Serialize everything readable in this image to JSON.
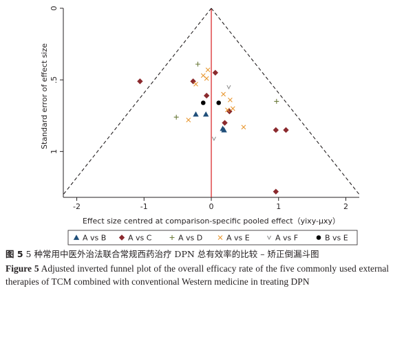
{
  "chart_data": {
    "type": "scatter",
    "xlabel": "Effect size centred at comparison-specific pooled effect（yixy-μxy）",
    "ylabel": "Standard error of effect size",
    "xlim": [
      -2.2,
      2.2
    ],
    "ylim": [
      0,
      1.32
    ],
    "y_reversed": true,
    "x_ticks": [
      "-2",
      "-1",
      "0",
      "1",
      "2"
    ],
    "x_tick_values": [
      -2,
      -1,
      0,
      1,
      2
    ],
    "y_ticks": [
      "0",
      ".5",
      "1"
    ],
    "y_tick_values": [
      0,
      0.5,
      1
    ],
    "reference_line_x": 0,
    "funnel": {
      "apex": [
        0,
        0
      ],
      "base_y": 1.3,
      "half_width_at_base": 2.2
    },
    "legend_position": "bottom",
    "series": [
      {
        "name": "A vs B",
        "marker": "triangle",
        "color": "#1f4e79",
        "points": [
          [
            -0.23,
            0.74
          ],
          [
            -0.08,
            0.74
          ],
          [
            0.17,
            0.84
          ],
          [
            0.19,
            0.85
          ]
        ]
      },
      {
        "name": "A vs C",
        "marker": "diamond",
        "color": "#8b2a2e",
        "points": [
          [
            -1.06,
            0.51
          ],
          [
            -0.27,
            0.51
          ],
          [
            0.06,
            0.45
          ],
          [
            -0.07,
            0.61
          ],
          [
            0.2,
            0.8
          ],
          [
            0.27,
            0.72
          ],
          [
            0.96,
            0.85
          ],
          [
            1.11,
            0.85
          ],
          [
            0.96,
            1.28
          ]
        ]
      },
      {
        "name": "A vs D",
        "marker": "plus",
        "color": "#6b7a3a",
        "points": [
          [
            -0.2,
            0.39
          ],
          [
            -0.52,
            0.76
          ],
          [
            0.97,
            0.65
          ]
        ]
      },
      {
        "name": "A vs E",
        "marker": "x",
        "color": "#e8962e",
        "points": [
          [
            -0.05,
            0.43
          ],
          [
            -0.12,
            0.47
          ],
          [
            -0.07,
            0.49
          ],
          [
            -0.23,
            0.53
          ],
          [
            0.18,
            0.6
          ],
          [
            0.28,
            0.64
          ],
          [
            0.24,
            0.71
          ],
          [
            0.32,
            0.7
          ],
          [
            -0.34,
            0.78
          ],
          [
            0.48,
            0.83
          ]
        ]
      },
      {
        "name": "A vs F",
        "marker": "v",
        "color": "#8a8a8a",
        "points": [
          [
            0.26,
            0.55
          ],
          [
            0.04,
            0.91
          ]
        ]
      },
      {
        "name": "B vs E",
        "marker": "circle",
        "color": "#000000",
        "points": [
          [
            -0.12,
            0.66
          ],
          [
            0.11,
            0.66
          ]
        ]
      }
    ]
  },
  "caption": {
    "cn_label": "图 5",
    "cn_text": "  5 种常用中医外治法联合常规西药治疗 DPN 总有效率的比较 – 矫正倒漏斗图",
    "en_label": "Figure 5",
    "en_text": "   Adjusted inverted funnel plot of the overall efficacy rate of the five commonly used external therapies of TCM combined with conventional Western medicine in treating DPN"
  }
}
